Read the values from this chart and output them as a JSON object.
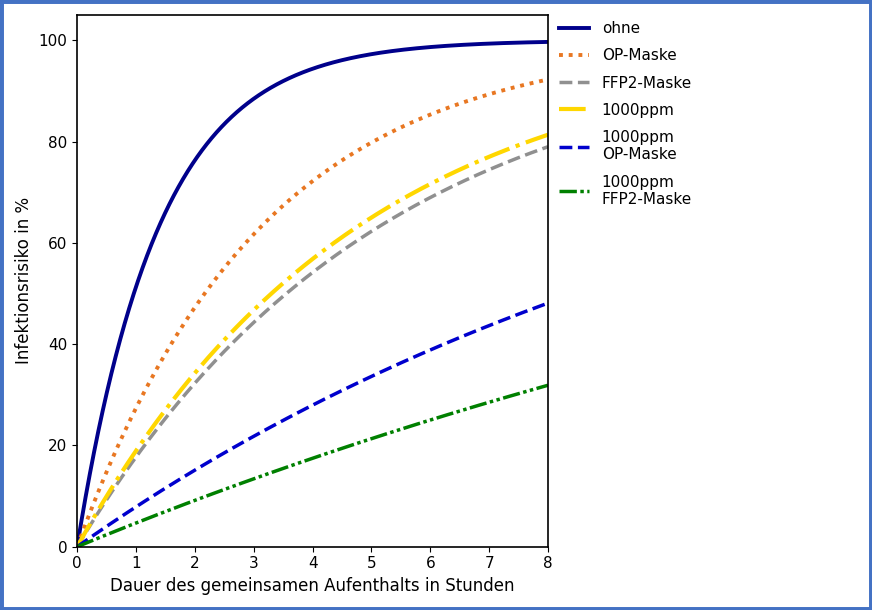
{
  "title": "",
  "xlabel": "Dauer des gemeinsamen Aufenthalts in Stunden",
  "ylabel": "Infektionsrisiko in %",
  "xlim": [
    0,
    8
  ],
  "ylim": [
    0,
    105
  ],
  "yticks": [
    0,
    20,
    40,
    60,
    80,
    100
  ],
  "xticks": [
    0,
    1,
    2,
    3,
    4,
    5,
    6,
    7,
    8
  ],
  "curves": [
    {
      "label": "ohne",
      "color": "#00008B",
      "linestyle": "solid",
      "linewidth": 2.8,
      "lambda": 0.72
    },
    {
      "label": "OP-Maske",
      "color": "#E87722",
      "linestyle": "dotted",
      "linewidth": 2.8,
      "lambda": 0.32
    },
    {
      "label": "FFP2-Maske",
      "color": "#909090",
      "linestyle": "dashed",
      "linewidth": 2.5,
      "lambda": 0.195
    },
    {
      "label": "1000ppm",
      "color": "#FFD700",
      "linestyle": "dashdot",
      "linewidth": 3.0,
      "lambda": 0.21
    },
    {
      "label": "1000ppm\nOP-Maske",
      "color": "#0000CD",
      "linestyle": "dashed",
      "linewidth": 2.5,
      "lambda": 0.082
    },
    {
      "label": "1000ppm\nFFP2-Maske",
      "color": "#008000",
      "linestyle": "dashdotdot",
      "linewidth": 2.5,
      "lambda": 0.048
    }
  ],
  "border_color": "#4472C4",
  "background_color": "#FFFFFF",
  "legend_fontsize": 11,
  "axis_fontsize": 12,
  "tick_fontsize": 11
}
